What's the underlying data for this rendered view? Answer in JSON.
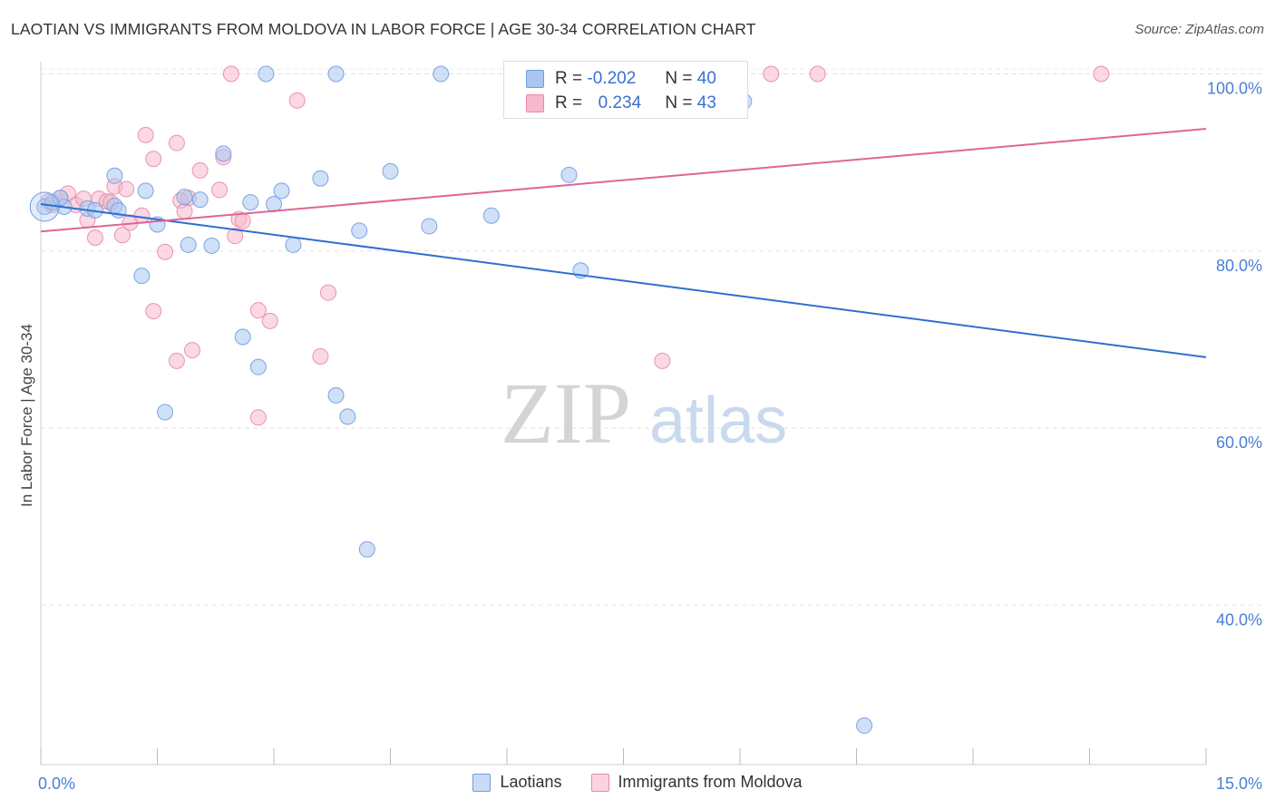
{
  "header": {
    "title": "LAOTIAN VS IMMIGRANTS FROM MOLDOVA IN LABOR FORCE | AGE 30-34 CORRELATION CHART",
    "source": "Source: ZipAtlas.com"
  },
  "watermark": {
    "zip": "ZIP",
    "atlas": "atlas"
  },
  "legend": {
    "rows": [
      {
        "r_label": "R =",
        "r_value": "-0.202",
        "n_label": "N =",
        "n_value": "40",
        "color": "#a8c6f0",
        "border": "#6f9de0"
      },
      {
        "r_label": "R =",
        "r_value": "0.234",
        "n_label": "N =",
        "n_value": "43",
        "color": "#f7b8cc",
        "border": "#e889a8"
      }
    ]
  },
  "chart_data": {
    "type": "scatter",
    "title": "LAOTIAN VS IMMIGRANTS FROM MOLDOVA IN LABOR FORCE | AGE 30-34 CORRELATION CHART",
    "xlabel": "",
    "ylabel": "In Labor Force | Age 30-34",
    "xlim": [
      0,
      15
    ],
    "ylim": [
      22,
      102
    ],
    "x_tick_labels": [
      "0.0%",
      "15.0%"
    ],
    "y_ticks": [
      40,
      60,
      80,
      100
    ],
    "y_tick_labels": [
      "40.0%",
      "60.0%",
      "80.0%",
      "100.0%"
    ],
    "grid": true,
    "legend_position": "bottom-center",
    "series": [
      {
        "name": "Laotians",
        "color": "#6f9de0",
        "fill": "#a8c6f0",
        "trend": {
          "x": [
            0,
            15
          ],
          "y": [
            85.3,
            68.0
          ],
          "color": "#2f6fd0"
        },
        "points": [
          {
            "x": 0.05,
            "y": 85.0
          },
          {
            "x": 0.15,
            "y": 85.5
          },
          {
            "x": 0.3,
            "y": 85.0
          },
          {
            "x": 0.6,
            "y": 84.8
          },
          {
            "x": 0.95,
            "y": 88.5
          },
          {
            "x": 0.95,
            "y": 85.1
          },
          {
            "x": 1.0,
            "y": 84.6
          },
          {
            "x": 1.35,
            "y": 86.8
          },
          {
            "x": 1.5,
            "y": 83.0
          },
          {
            "x": 1.85,
            "y": 86.1
          },
          {
            "x": 2.05,
            "y": 85.8
          },
          {
            "x": 2.35,
            "y": 91.0
          },
          {
            "x": 2.7,
            "y": 85.5
          },
          {
            "x": 3.0,
            "y": 85.3
          },
          {
            "x": 3.1,
            "y": 86.8
          },
          {
            "x": 3.6,
            "y": 88.2
          },
          {
            "x": 4.1,
            "y": 82.3
          },
          {
            "x": 4.5,
            "y": 89.0
          },
          {
            "x": 5.0,
            "y": 82.8
          },
          {
            "x": 5.8,
            "y": 84.0
          },
          {
            "x": 6.8,
            "y": 88.6
          },
          {
            "x": 1.3,
            "y": 77.2
          },
          {
            "x": 1.9,
            "y": 80.7
          },
          {
            "x": 2.2,
            "y": 80.6
          },
          {
            "x": 3.25,
            "y": 80.7
          },
          {
            "x": 6.95,
            "y": 77.8
          },
          {
            "x": 2.6,
            "y": 70.3
          },
          {
            "x": 2.8,
            "y": 66.9
          },
          {
            "x": 1.6,
            "y": 61.8
          },
          {
            "x": 3.8,
            "y": 63.7
          },
          {
            "x": 3.95,
            "y": 61.3
          },
          {
            "x": 4.2,
            "y": 46.3
          },
          {
            "x": 10.6,
            "y": 26.4
          },
          {
            "x": 2.9,
            "y": 100.0
          },
          {
            "x": 3.8,
            "y": 100.0
          },
          {
            "x": 5.15,
            "y": 100.0
          },
          {
            "x": 8.3,
            "y": 100.0
          },
          {
            "x": 9.05,
            "y": 96.9
          },
          {
            "x": 0.25,
            "y": 86.0
          },
          {
            "x": 0.7,
            "y": 84.6
          }
        ]
      },
      {
        "name": "Immigrants from Moldova",
        "color": "#e889a8",
        "fill": "#f7b8cc",
        "trend": {
          "x": [
            0,
            15
          ],
          "y": [
            82.2,
            93.8
          ],
          "color": "#e0649a"
        },
        "points": [
          {
            "x": 0.1,
            "y": 85.6
          },
          {
            "x": 0.25,
            "y": 86.0
          },
          {
            "x": 0.35,
            "y": 86.5
          },
          {
            "x": 0.45,
            "y": 85.2
          },
          {
            "x": 0.55,
            "y": 85.9
          },
          {
            "x": 0.6,
            "y": 83.5
          },
          {
            "x": 0.7,
            "y": 81.5
          },
          {
            "x": 0.75,
            "y": 85.9
          },
          {
            "x": 0.85,
            "y": 85.6
          },
          {
            "x": 0.95,
            "y": 87.3
          },
          {
            "x": 1.05,
            "y": 81.8
          },
          {
            "x": 1.1,
            "y": 87.0
          },
          {
            "x": 1.15,
            "y": 83.2
          },
          {
            "x": 1.3,
            "y": 84.0
          },
          {
            "x": 1.35,
            "y": 93.1
          },
          {
            "x": 1.45,
            "y": 90.4
          },
          {
            "x": 1.6,
            "y": 79.9
          },
          {
            "x": 1.75,
            "y": 92.2
          },
          {
            "x": 1.8,
            "y": 85.7
          },
          {
            "x": 1.85,
            "y": 84.5
          },
          {
            "x": 2.05,
            "y": 89.1
          },
          {
            "x": 2.3,
            "y": 86.9
          },
          {
            "x": 2.35,
            "y": 90.6
          },
          {
            "x": 2.5,
            "y": 81.7
          },
          {
            "x": 2.55,
            "y": 83.6
          },
          {
            "x": 2.6,
            "y": 83.4
          },
          {
            "x": 1.45,
            "y": 73.2
          },
          {
            "x": 1.75,
            "y": 67.6
          },
          {
            "x": 1.95,
            "y": 68.8
          },
          {
            "x": 2.8,
            "y": 73.3
          },
          {
            "x": 2.95,
            "y": 72.1
          },
          {
            "x": 3.6,
            "y": 68.1
          },
          {
            "x": 3.7,
            "y": 75.3
          },
          {
            "x": 2.8,
            "y": 61.2
          },
          {
            "x": 8.0,
            "y": 67.6
          },
          {
            "x": 2.45,
            "y": 100.0
          },
          {
            "x": 3.3,
            "y": 97.0
          },
          {
            "x": 9.4,
            "y": 100.0
          },
          {
            "x": 10.0,
            "y": 100.0
          },
          {
            "x": 13.65,
            "y": 100.0
          },
          {
            "x": 0.15,
            "y": 85.2
          },
          {
            "x": 0.9,
            "y": 85.5
          },
          {
            "x": 1.9,
            "y": 86.0
          }
        ]
      }
    ]
  }
}
